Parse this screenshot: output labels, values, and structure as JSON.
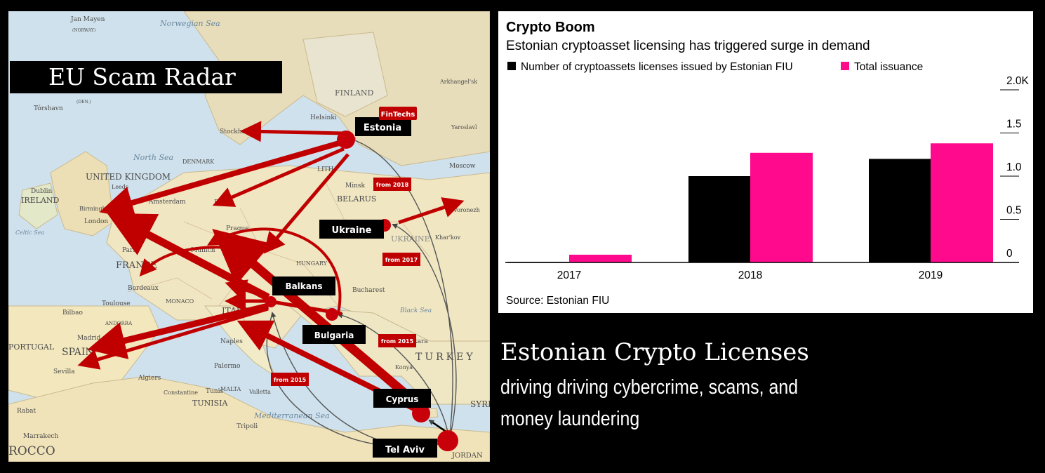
{
  "map": {
    "title": "EU Scam Radar",
    "nodes": {
      "estonia": "Estonia",
      "ukraine": "Ukraine",
      "balkans": "Balkans",
      "bulgaria": "Bulgaria",
      "cyprus": "Cyprus",
      "tel_aviv": "Tel Aviv"
    },
    "tags": {
      "fintechs": "FinTechs",
      "from2018": "from 2018",
      "from2017": "from 2017",
      "from2015a": "from 2015",
      "from2015b": "from 2015"
    },
    "places": {
      "jan_mayen": "Jan Mayen",
      "norway_paren": "(NORWAY)",
      "norwegian_sea": "Norwegian Sea",
      "finland": "FINLAND",
      "helsinki": "Helsinki",
      "torshavn": "Tórshavn",
      "den": "(DEN.)",
      "north_sea": "North Sea",
      "denmark": "DENMARK",
      "united_kingdom": "UNITED KINGDOM",
      "ireland": "IRELAND",
      "dublin": "Dublin",
      "london": "London",
      "birmingham": "Birmingham",
      "leeds": "Leeds",
      "amsterdam": "Amsterdam",
      "berlin": "Berlin",
      "moscow": "Moscow",
      "minsk": "Minsk",
      "belarus": "BELARUS",
      "yaroslavl": "Yaroslavl",
      "arkhangel": "Arkhangel'sk",
      "voronezh": "Voronezh",
      "prague": "Prague",
      "paris": "Paris",
      "france": "FRANCE",
      "bordeaux": "Bordeaux",
      "toulouse": "Toulouse",
      "munich": "Munich",
      "monaco": "MONACO",
      "italy": "ITALY",
      "andorra": "ANDORRA",
      "spain": "SPAIN",
      "madrid": "Madrid",
      "sevilla": "Sevilla",
      "portugal": "PORTUGAL",
      "bilbao": "Bilbao",
      "algiers": "Algiers",
      "tunis": "Tunis",
      "tunisia": "TUNISIA",
      "malta": "MALTA",
      "valletta": "Valletta",
      "palermo": "Palermo",
      "naples": "Naples",
      "mediterranean_sea": "Mediterranean Sea",
      "tripoli": "Tripoli",
      "rabat": "Rabat",
      "marrakech": "Marrakech",
      "morocco": "ROCCO",
      "turkey": "TURKEY",
      "ankara": "Ankara",
      "konya": "Konya",
      "syria": "SYRI",
      "jordan": "JORDAN",
      "black_sea": "Black Sea",
      "kharkov": "Khar'kov",
      "hungary": "HUNGARY",
      "bucharest": "Bucharest",
      "celtic_sea": "Celtic Sea",
      "stockholm": "Stockholm",
      "constantine": "Constantine",
      "ukraine_map": "UKRAINE",
      "lith": "LITH"
    }
  },
  "chart_data": {
    "type": "bar",
    "title": "Crypto Boom",
    "subtitle": "Estonian cryptoasset licensing has triggered surge in demand",
    "categories": [
      "2017",
      "2018",
      "2019"
    ],
    "series": [
      {
        "name": "Number of cryptoassets licenses issued by Estonian FIU",
        "color": "#000000",
        "values": [
          0.005,
          1.0,
          1.2
        ]
      },
      {
        "name": "Total issuance",
        "color": "#ff0a8c",
        "values": [
          0.09,
          1.27,
          1.38
        ]
      }
    ],
    "yticks": [
      "0",
      "0.5",
      "1.0",
      "1.5",
      "2.0K"
    ],
    "ylim": [
      0,
      2.0
    ],
    "y_axis_side": "right",
    "source": "Source: Estonian FIU",
    "legend_position": "top-left"
  },
  "caption": {
    "headline": "Estonian Crypto Licenses",
    "subline": "driving driving cybercrime, scams, and money laundering"
  }
}
